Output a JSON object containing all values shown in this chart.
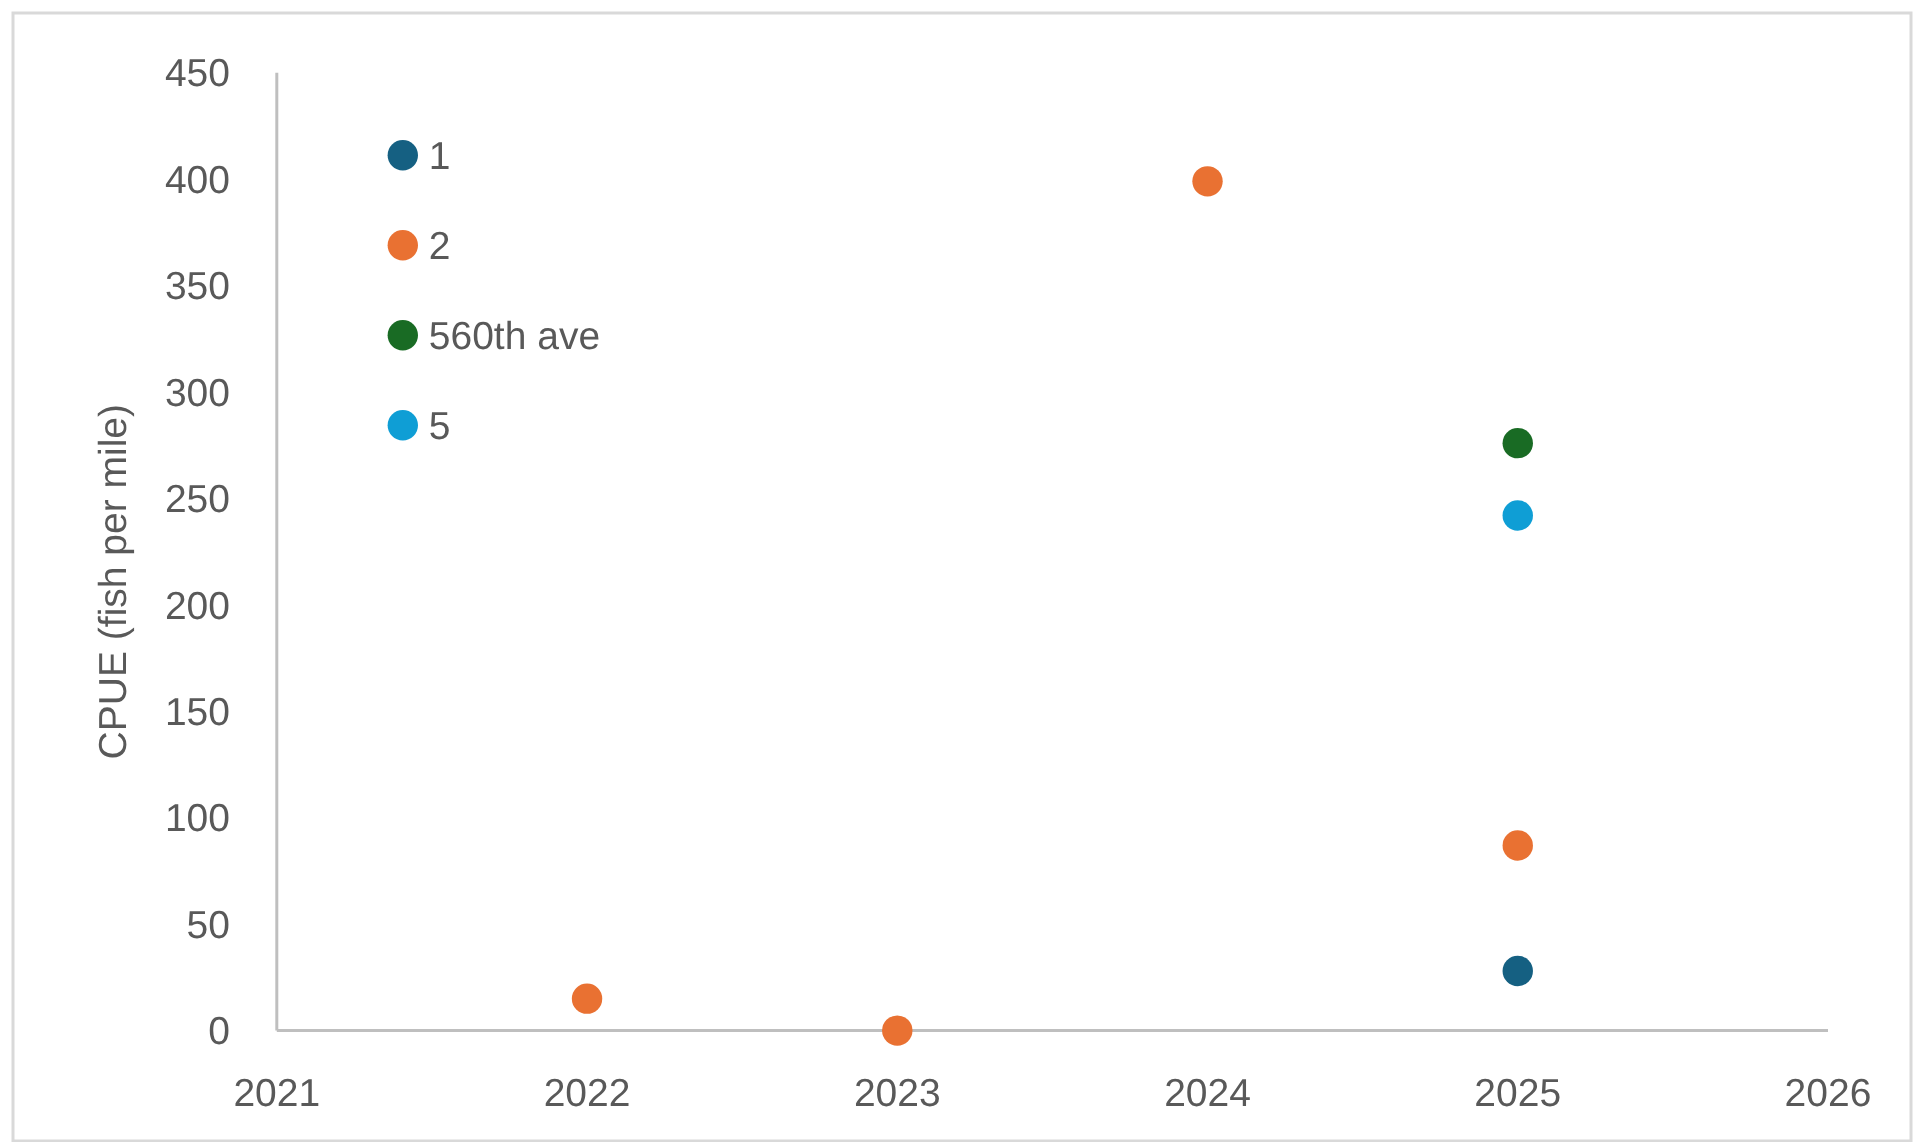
{
  "chart_data": {
    "type": "scatter",
    "ylabel": "CPUE (fish per mile)",
    "xlim": [
      2021,
      2026
    ],
    "xticks": [
      2021,
      2022,
      2023,
      2024,
      2025,
      2026
    ],
    "ylim": [
      0,
      450
    ],
    "yticks": [
      0,
      50,
      100,
      150,
      200,
      250,
      300,
      350,
      400,
      450
    ],
    "legend": "top left",
    "marker": "circle",
    "series": [
      {
        "name": "1",
        "color": "#156082",
        "x": [
          2025
        ],
        "values": [
          28
        ]
      },
      {
        "name": "2",
        "color": "#e97132",
        "x": [
          2022,
          2023,
          2024,
          2025
        ],
        "values": [
          15,
          0,
          399,
          87
        ]
      },
      {
        "name": "560th ave",
        "color": "#196b24",
        "x": [
          2025
        ],
        "values": [
          276
        ]
      },
      {
        "name": "5",
        "color": "#0f9ed5",
        "x": [
          2025
        ],
        "values": [
          242
        ]
      }
    ]
  }
}
